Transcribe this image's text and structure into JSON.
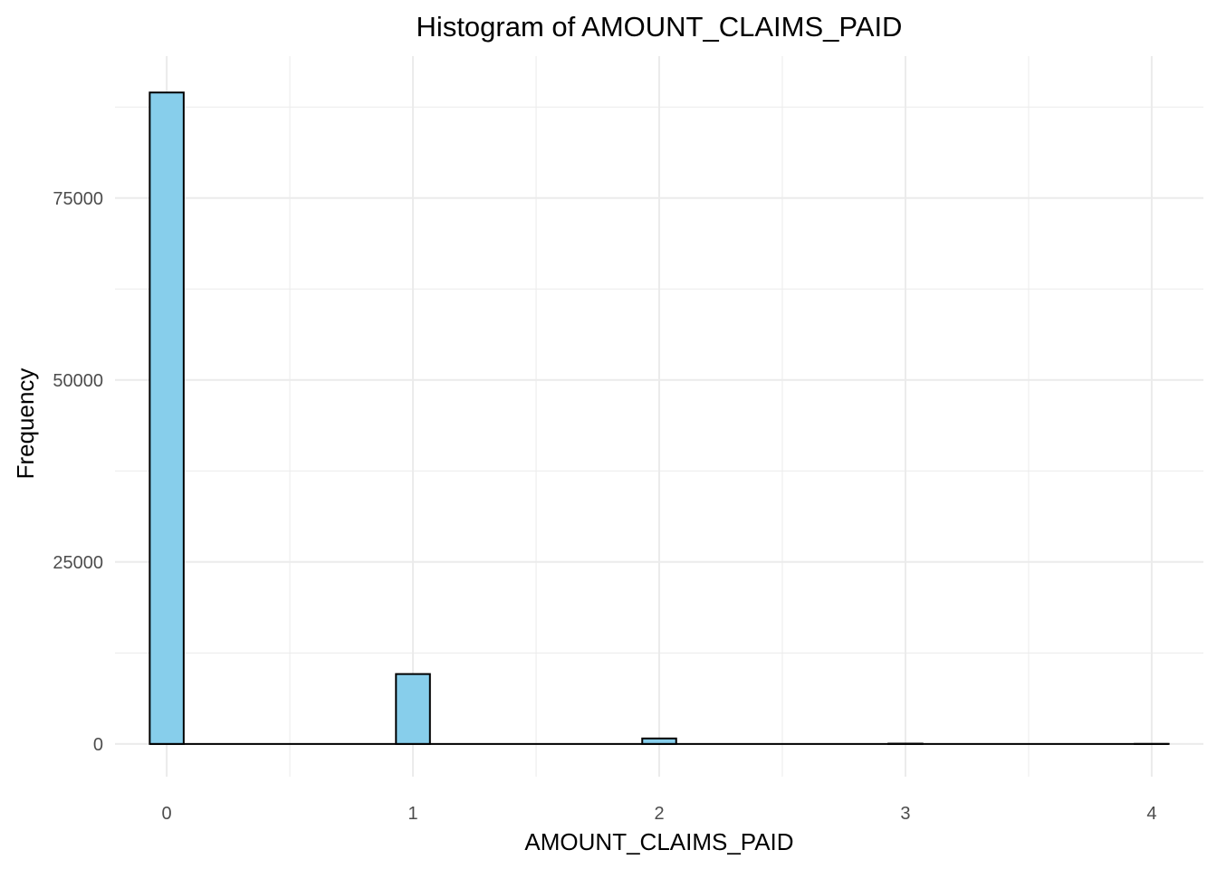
{
  "chart_data": {
    "type": "bar",
    "title": "Histogram of AMOUNT_CLAIMS_PAID",
    "xlabel": "AMOUNT_CLAIMS_PAID",
    "ylabel": "Frequency",
    "xlim": [
      -0.21,
      4.21
    ],
    "ylim": [
      -4500,
      94500
    ],
    "x_ticks": [
      0,
      1,
      2,
      3,
      4
    ],
    "y_ticks": [
      0,
      25000,
      50000,
      75000
    ],
    "bin_width": 0.1379,
    "bins": [
      {
        "x": 0,
        "count": 89500
      },
      {
        "x": 1,
        "count": 9600
      },
      {
        "x": 2,
        "count": 750
      },
      {
        "x": 3,
        "count": 40
      },
      {
        "x": 4,
        "count": 5
      }
    ],
    "grid": true,
    "bar_fill": "#87ceeb",
    "bar_stroke": "#000000",
    "grid_color": "#ebebeb"
  }
}
